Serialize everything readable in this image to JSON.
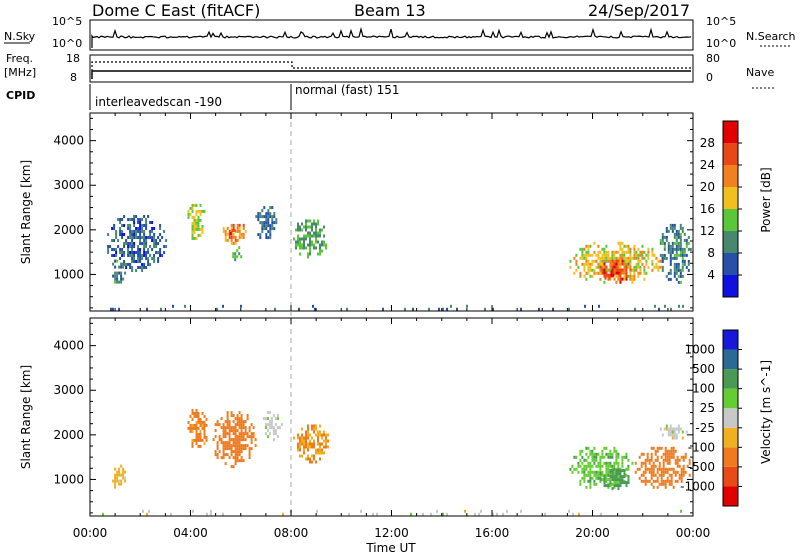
{
  "header": {
    "title": "Dome C East (fitACF)",
    "beam": "Beam 13",
    "date": "24/Sep/2017"
  },
  "strip_labels": {
    "nsky": "N.Sky",
    "nsearch": "N.Search",
    "freq_line1": "Freq.",
    "freq_line2": "[MHz]",
    "nave": "Nave",
    "cpid": "CPID",
    "nsky_ticks": [
      "10^5",
      "10^0"
    ],
    "nsearch_ticks": [
      "10^5",
      "10^0"
    ],
    "freq_ticks": [
      "18",
      "8"
    ],
    "nave_ticks": [
      "80",
      "0"
    ]
  },
  "cpid_modes": [
    {
      "label": "interleavedscan -190",
      "start_hour": 0
    },
    {
      "label": "normal (fast) 151",
      "start_hour": 8
    }
  ],
  "time_axis": {
    "label": "Time UT",
    "ticks": [
      "00:00",
      "04:00",
      "08:00",
      "12:00",
      "16:00",
      "20:00",
      "00:00"
    ]
  },
  "colors": {
    "power": [
      "#1010e0",
      "#2850a8",
      "#48886e",
      "#5cc63a",
      "#f0c020",
      "#f08020",
      "#e84818",
      "#e00000"
    ],
    "velocity": [
      "#e00000",
      "#e84a18",
      "#f07a20",
      "#f0b020",
      "#c8c8c8",
      "#66cc33",
      "#4a9a55",
      "#2a6a95",
      "#1818d8"
    ]
  },
  "chart_data": [
    {
      "type": "heatmap",
      "xlabel": "",
      "ylabel": "Slant Range [km]",
      "x_range_hours": [
        0,
        24
      ],
      "ylim": [
        180,
        4620
      ],
      "yticks": [
        "1000",
        "2000",
        "3000",
        "4000"
      ],
      "colorbar": {
        "label": "Power [dB]",
        "ticks": [
          "4",
          "8",
          "12",
          "16",
          "20",
          "24",
          "28"
        ],
        "range": [
          0,
          32
        ]
      },
      "regions": [
        {
          "start_hour": 0.8,
          "end_hour": 1.4,
          "range_km": [
            800,
            1400
          ],
          "value_db": 10
        },
        {
          "start_hour": 0.6,
          "end_hour": 3.0,
          "range_km": [
            1100,
            2400
          ],
          "value_db": 7
        },
        {
          "start_hour": 3.8,
          "end_hour": 4.6,
          "range_km": [
            1800,
            2650
          ],
          "value_db": 16
        },
        {
          "start_hour": 5.2,
          "end_hour": 6.3,
          "range_km": [
            1700,
            2200
          ],
          "value_db": 22
        },
        {
          "start_hour": 5.4,
          "end_hour": 5.8,
          "range_km": [
            1900,
            2150
          ],
          "value_db": 28
        },
        {
          "start_hour": 5.5,
          "end_hour": 6.0,
          "range_km": [
            1300,
            1700
          ],
          "value_db": 12
        },
        {
          "start_hour": 6.5,
          "end_hour": 7.5,
          "range_km": [
            1800,
            2600
          ],
          "value_db": 8
        },
        {
          "start_hour": 8.0,
          "end_hour": 9.5,
          "range_km": [
            1400,
            2300
          ],
          "value_db": 12
        },
        {
          "start_hour": 19.0,
          "end_hour": 22.8,
          "range_km": [
            800,
            1800
          ],
          "value_db": 18
        },
        {
          "start_hour": 20.2,
          "end_hour": 21.6,
          "range_km": [
            850,
            1400
          ],
          "value_db": 26
        },
        {
          "start_hour": 20.4,
          "end_hour": 20.9,
          "range_km": [
            900,
            1150
          ],
          "value_db": 30
        },
        {
          "start_hour": 22.6,
          "end_hour": 23.9,
          "range_km": [
            800,
            2200
          ],
          "value_db": 9
        },
        {
          "start_hour": 0,
          "end_hour": 24,
          "range_km": [
            200,
            320
          ],
          "value_db": 8
        }
      ]
    },
    {
      "type": "heatmap",
      "xlabel": "Time UT",
      "ylabel": "Slant Range [km]",
      "x_range_hours": [
        0,
        24
      ],
      "ylim": [
        180,
        4620
      ],
      "yticks": [
        "1000",
        "2000",
        "3000",
        "4000"
      ],
      "colorbar": {
        "label": "Velocity [m s^-1]",
        "ticks": [
          "-1000",
          "-500",
          "-100",
          "-25",
          "25",
          "100",
          "500",
          "1000"
        ]
      },
      "regions": [
        {
          "start_hour": 0.8,
          "end_hour": 1.4,
          "range_km": [
            800,
            1400
          ],
          "value_ms": -50
        },
        {
          "start_hour": 3.8,
          "end_hour": 4.7,
          "range_km": [
            1700,
            2650
          ],
          "value_ms": -150
        },
        {
          "start_hour": 4.8,
          "end_hour": 6.6,
          "range_km": [
            1300,
            2600
          ],
          "value_ms": -200
        },
        {
          "start_hour": 6.8,
          "end_hour": 7.6,
          "range_km": [
            1900,
            2600
          ],
          "value_ms": 0
        },
        {
          "start_hour": 8.0,
          "end_hour": 9.5,
          "range_km": [
            1400,
            2300
          ],
          "value_ms": -100
        },
        {
          "start_hour": 19.0,
          "end_hour": 21.6,
          "range_km": [
            800,
            1800
          ],
          "value_ms": 80
        },
        {
          "start_hour": 20.2,
          "end_hour": 21.5,
          "range_km": [
            800,
            1300
          ],
          "value_ms": 150
        },
        {
          "start_hour": 21.6,
          "end_hour": 23.9,
          "range_km": [
            800,
            1800
          ],
          "value_ms": -200
        },
        {
          "start_hour": 22.6,
          "end_hour": 23.8,
          "range_km": [
            1900,
            2300
          ],
          "value_ms": 0
        },
        {
          "start_hour": 0,
          "end_hour": 24,
          "range_km": [
            200,
            320
          ],
          "value_ms": 0
        }
      ]
    }
  ]
}
